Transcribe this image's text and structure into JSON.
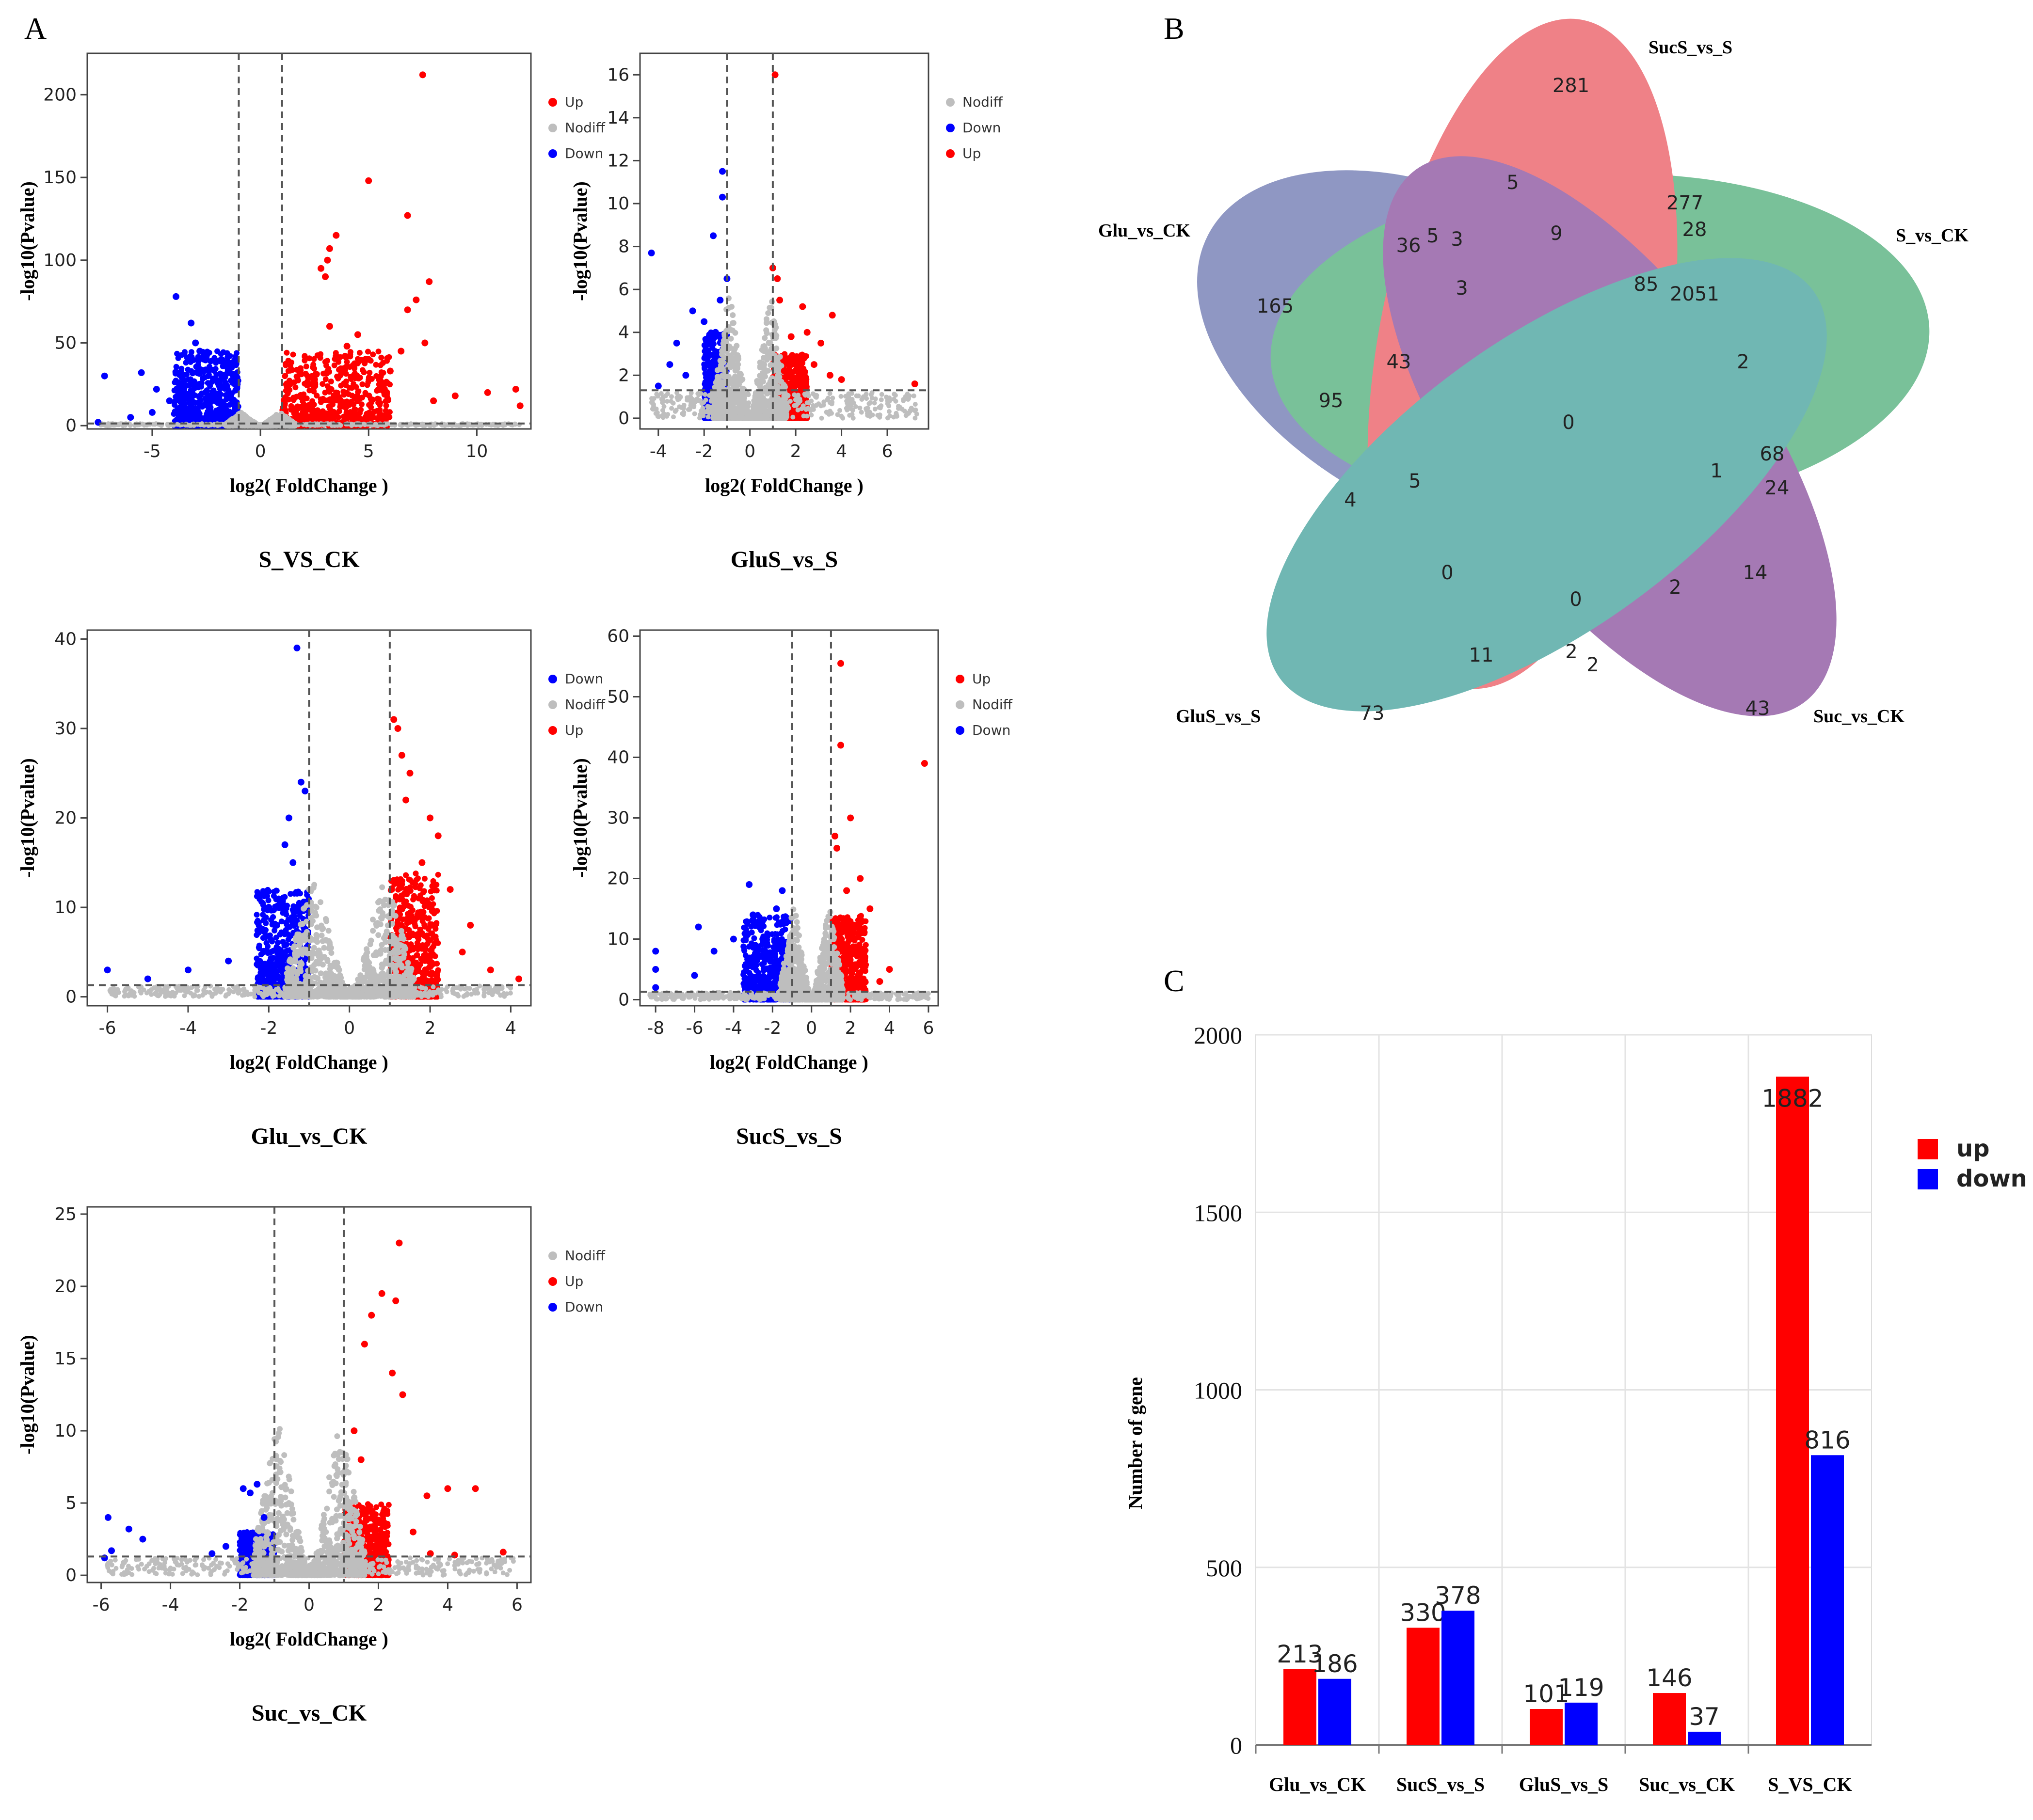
{
  "panel_labels": {
    "a": "A",
    "b": "B",
    "c": "C"
  },
  "colors": {
    "up": "#ff0000",
    "down": "#0000ff",
    "nodiff": "#bebebe"
  },
  "chart_data": [
    {
      "id": "volcano-s-vs-ck",
      "type": "scatter",
      "title": "S_VS_CK",
      "xlabel": "log2( FoldChange )",
      "ylabel": "-log10(Pvalue)",
      "xlim": [
        -8,
        12.5
      ],
      "ylim": [
        -2,
        225
      ],
      "xticks": [
        -5,
        0,
        5,
        10
      ],
      "yticks": [
        0,
        50,
        100,
        150,
        200
      ],
      "thresholds": {
        "x": [
          -1,
          1
        ],
        "y": 1.3
      },
      "legend": [
        "Up",
        "Nodiff",
        "Down"
      ],
      "series": [
        {
          "name": "Up",
          "points": [
            [
              7.5,
              212
            ],
            [
              5,
              148
            ],
            [
              6.8,
              127
            ],
            [
              3.5,
              115
            ],
            [
              3.2,
              107
            ],
            [
              3.1,
              100
            ],
            [
              2.8,
              95
            ],
            [
              7.8,
              87
            ],
            [
              3,
              90
            ],
            [
              7.2,
              76
            ],
            [
              6.8,
              70
            ],
            [
              7.6,
              50
            ],
            [
              11.8,
              22
            ],
            [
              10.5,
              20
            ],
            [
              9,
              18
            ],
            [
              12,
              12
            ],
            [
              8,
              15
            ],
            [
              6,
              33
            ],
            [
              5,
              40
            ],
            [
              4.5,
              55
            ],
            [
              4,
              48
            ],
            [
              3.5,
              42
            ],
            [
              3.2,
              60
            ],
            [
              6.5,
              45
            ]
          ]
        },
        {
          "name": "Down",
          "points": [
            [
              -7.2,
              30
            ],
            [
              -5.5,
              32
            ],
            [
              -4.8,
              22
            ],
            [
              -4.2,
              15
            ],
            [
              -3.9,
              78
            ],
            [
              -3.2,
              62
            ],
            [
              -3,
              50
            ],
            [
              -2.8,
              45
            ],
            [
              -2.5,
              40
            ],
            [
              -5,
              8
            ],
            [
              -6,
              5
            ],
            [
              -7.5,
              2
            ]
          ]
        }
      ],
      "dense_clouds": [
        {
          "name": "Up",
          "x_range": [
            1,
            6
          ],
          "y_max": 45
        },
        {
          "name": "Down",
          "x_range": [
            -4,
            -1
          ],
          "y_max": 45
        },
        {
          "name": "Nodiff",
          "x_range": [
            -1.6,
            1.6
          ],
          "y_max": 8
        }
      ]
    },
    {
      "id": "volcano-glus-vs-s",
      "type": "scatter",
      "title": "GluS_vs_S",
      "xlabel": "log2( FoldChange )",
      "ylabel": "-log10(Pvalue)",
      "xlim": [
        -4.8,
        7.8
      ],
      "ylim": [
        -0.5,
        17
      ],
      "xticks": [
        -4,
        -2,
        0,
        2,
        4,
        6
      ],
      "yticks": [
        0,
        2,
        4,
        6,
        8,
        10,
        12,
        14,
        16
      ],
      "thresholds": {
        "x": [
          -1,
          1
        ],
        "y": 1.3
      },
      "legend": [
        "Nodiff",
        "Down",
        "Up"
      ],
      "series": [
        {
          "name": "Up",
          "points": [
            [
              1.1,
              16
            ],
            [
              1,
              7
            ],
            [
              1.2,
              6.5
            ],
            [
              1.3,
              5.5
            ],
            [
              2.3,
              5.2
            ],
            [
              3.6,
              4.8
            ],
            [
              2.5,
              4
            ],
            [
              3.1,
              3.5
            ],
            [
              1.8,
              3.8
            ],
            [
              2.8,
              2.5
            ],
            [
              3.5,
              2
            ],
            [
              4,
              1.8
            ],
            [
              7.2,
              1.6
            ],
            [
              1.5,
              2.2
            ]
          ]
        },
        {
          "name": "Down",
          "points": [
            [
              -1.2,
              11.5
            ],
            [
              -1.2,
              10.3
            ],
            [
              -1.6,
              8.5
            ],
            [
              -4.3,
              7.7
            ],
            [
              -1,
              6.5
            ],
            [
              -1.3,
              5.5
            ],
            [
              -2.5,
              5
            ],
            [
              -2,
              4.5
            ],
            [
              -3.2,
              3.5
            ],
            [
              -4,
              1.5
            ],
            [
              -1.8,
              3
            ],
            [
              -2.8,
              2
            ],
            [
              -1.5,
              4
            ],
            [
              -3.5,
              2.5
            ]
          ]
        }
      ],
      "dense_clouds": [
        {
          "name": "Up",
          "x_range": [
            1,
            2.5
          ],
          "y_max": 3
        },
        {
          "name": "Down",
          "x_range": [
            -2,
            -1
          ],
          "y_max": 4
        },
        {
          "name": "Nodiff",
          "x_range": [
            -1.6,
            1.6
          ],
          "y_max": 6
        }
      ]
    },
    {
      "id": "volcano-glu-vs-ck",
      "type": "scatter",
      "title": "Glu_vs_CK",
      "xlabel": "log2( FoldChange )",
      "ylabel": "-log10(Pvalue)",
      "xlim": [
        -6.5,
        4.5
      ],
      "ylim": [
        -1,
        41
      ],
      "xticks": [
        -6,
        -4,
        -2,
        0,
        2,
        4
      ],
      "yticks": [
        0,
        10,
        20,
        30,
        40
      ],
      "thresholds": {
        "x": [
          -1,
          1
        ],
        "y": 1.3
      },
      "legend": [
        "Down",
        "Nodiff",
        "Up"
      ],
      "series": [
        {
          "name": "Up",
          "points": [
            [
              1.1,
              31
            ],
            [
              1.2,
              30
            ],
            [
              1.3,
              27
            ],
            [
              1.5,
              25
            ],
            [
              1.4,
              22
            ],
            [
              2,
              20
            ],
            [
              2.2,
              18
            ],
            [
              1.8,
              15
            ],
            [
              2.5,
              12
            ],
            [
              3,
              8
            ],
            [
              2.8,
              5
            ],
            [
              3.5,
              3
            ],
            [
              4.2,
              2
            ]
          ]
        },
        {
          "name": "Down",
          "points": [
            [
              -1.3,
              39
            ],
            [
              -1.2,
              24
            ],
            [
              -1.1,
              23
            ],
            [
              -1.5,
              20
            ],
            [
              -1.6,
              17
            ],
            [
              -1.4,
              15
            ],
            [
              -2,
              10
            ],
            [
              -1.8,
              8
            ],
            [
              -3,
              4
            ],
            [
              -4,
              3
            ],
            [
              -5,
              2
            ],
            [
              -6,
              3
            ]
          ]
        }
      ],
      "dense_clouds": [
        {
          "name": "Up",
          "x_range": [
            1,
            2.2
          ],
          "y_max": 14
        },
        {
          "name": "Down",
          "x_range": [
            -2.3,
            -1
          ],
          "y_max": 12
        },
        {
          "name": "Nodiff",
          "x_range": [
            -1.6,
            1.6
          ],
          "y_max": 14
        }
      ]
    },
    {
      "id": "volcano-sucs-vs-s",
      "type": "scatter",
      "title": "SucS_vs_S",
      "xlabel": "log2( FoldChange )",
      "ylabel": "-log10(Pvalue)",
      "xlim": [
        -8.8,
        6.5
      ],
      "ylim": [
        -1,
        61
      ],
      "xticks": [
        -8,
        -6,
        -4,
        -2,
        0,
        2,
        4,
        6
      ],
      "yticks": [
        0,
        10,
        20,
        30,
        40,
        50,
        60
      ],
      "thresholds": {
        "x": [
          -1,
          1
        ],
        "y": 1.3
      },
      "legend": [
        "Up",
        "Nodiff",
        "Down"
      ],
      "series": [
        {
          "name": "Up",
          "points": [
            [
              1.5,
              55.5
            ],
            [
              1.5,
              42
            ],
            [
              5.8,
              39
            ],
            [
              2,
              30
            ],
            [
              1.2,
              27
            ],
            [
              1.3,
              25
            ],
            [
              2.5,
              20
            ],
            [
              3,
              15
            ],
            [
              1.8,
              18
            ],
            [
              2.2,
              12
            ],
            [
              4,
              5
            ],
            [
              3.5,
              3
            ]
          ]
        },
        {
          "name": "Down",
          "points": [
            [
              -3.2,
              19
            ],
            [
              -1.5,
              18
            ],
            [
              -5.8,
              12
            ],
            [
              -4,
              10
            ],
            [
              -3,
              14
            ],
            [
              -5,
              8
            ],
            [
              -8,
              8
            ],
            [
              -8,
              5
            ],
            [
              -8,
              2
            ],
            [
              -2.5,
              10
            ],
            [
              -1.8,
              15
            ],
            [
              -6,
              4
            ]
          ]
        }
      ],
      "dense_clouds": [
        {
          "name": "Up",
          "x_range": [
            1,
            2.8
          ],
          "y_max": 14
        },
        {
          "name": "Down",
          "x_range": [
            -3.5,
            -1
          ],
          "y_max": 14
        },
        {
          "name": "Nodiff",
          "x_range": [
            -1.6,
            1.6
          ],
          "y_max": 16
        }
      ]
    },
    {
      "id": "volcano-suc-vs-ck",
      "type": "scatter",
      "title": "Suc_vs_CK",
      "xlabel": "log2( FoldChange )",
      "ylabel": "-log10(Pvalue)",
      "xlim": [
        -6.4,
        6.4
      ],
      "ylim": [
        -0.5,
        25.5
      ],
      "xticks": [
        -6,
        -4,
        -2,
        0,
        2,
        4,
        6
      ],
      "yticks": [
        0,
        5,
        10,
        15,
        20,
        25
      ],
      "thresholds": {
        "x": [
          -1,
          1
        ],
        "y": 1.3
      },
      "legend": [
        "Nodiff",
        "Up",
        "Down"
      ],
      "series": [
        {
          "name": "Up",
          "points": [
            [
              2.6,
              23
            ],
            [
              2.1,
              19.5
            ],
            [
              2.5,
              19
            ],
            [
              1.8,
              18
            ],
            [
              1.6,
              16
            ],
            [
              2.4,
              14
            ],
            [
              2.7,
              12.5
            ],
            [
              4,
              6
            ],
            [
              4.8,
              6
            ],
            [
              3.4,
              5.5
            ],
            [
              1.3,
              10
            ],
            [
              1.5,
              8
            ],
            [
              3,
              3
            ],
            [
              3.5,
              1.5
            ],
            [
              5.6,
              1.6
            ],
            [
              4.2,
              1.4
            ]
          ]
        },
        {
          "name": "Down",
          "points": [
            [
              -5.8,
              4
            ],
            [
              -5.2,
              3.2
            ],
            [
              -4.8,
              2.5
            ],
            [
              -5.7,
              1.7
            ],
            [
              -5.9,
              1.2
            ],
            [
              -2.4,
              2
            ],
            [
              -1.9,
              6
            ],
            [
              -1.7,
              5.7
            ],
            [
              -1.5,
              6.3
            ],
            [
              -2.8,
              1.5
            ],
            [
              -1.3,
              4
            ]
          ]
        }
      ],
      "dense_clouds": [
        {
          "name": "Up",
          "x_range": [
            1,
            2.3
          ],
          "y_max": 5
        },
        {
          "name": "Down",
          "x_range": [
            -2,
            -1
          ],
          "y_max": 3
        },
        {
          "name": "Nodiff",
          "x_range": [
            -1.6,
            1.6
          ],
          "y_max": 11
        }
      ]
    },
    {
      "id": "venn",
      "type": "venn",
      "sets": [
        "SucS_vs_S",
        "S_vs_CK",
        "Suc_vs_CK",
        "GluS_vs_S",
        "Glu_vs_CK"
      ],
      "set_colors": [
        "#e8474f",
        "#3aa56a",
        "#7b3b92",
        "#2e9690",
        "#5b66a8"
      ],
      "region_values": [
        "281",
        "5",
        "277",
        "9",
        "28",
        "3",
        "85",
        "2051",
        "2",
        "68",
        "24",
        "1",
        "14",
        "43",
        "2",
        "2",
        "0",
        "73",
        "11",
        "2",
        "0",
        "4",
        "5",
        "95",
        "43",
        "36",
        "5",
        "3",
        "165",
        "0"
      ]
    },
    {
      "id": "deg-bars",
      "type": "bar",
      "categories": [
        "Glu_vs_CK",
        "SucS_vs_S",
        "GluS_vs_S",
        "Suc_vs_CK",
        "S_VS_CK"
      ],
      "series": [
        {
          "name": "up",
          "values": [
            213,
            330,
            101,
            146,
            1882
          ]
        },
        {
          "name": "down",
          "values": [
            186,
            378,
            119,
            37,
            816
          ]
        }
      ],
      "ylabel": "Number of gene",
      "ylim": [
        0,
        2000
      ],
      "yticks": [
        0,
        500,
        1000,
        1500,
        2000
      ],
      "legend_position": "right"
    }
  ]
}
